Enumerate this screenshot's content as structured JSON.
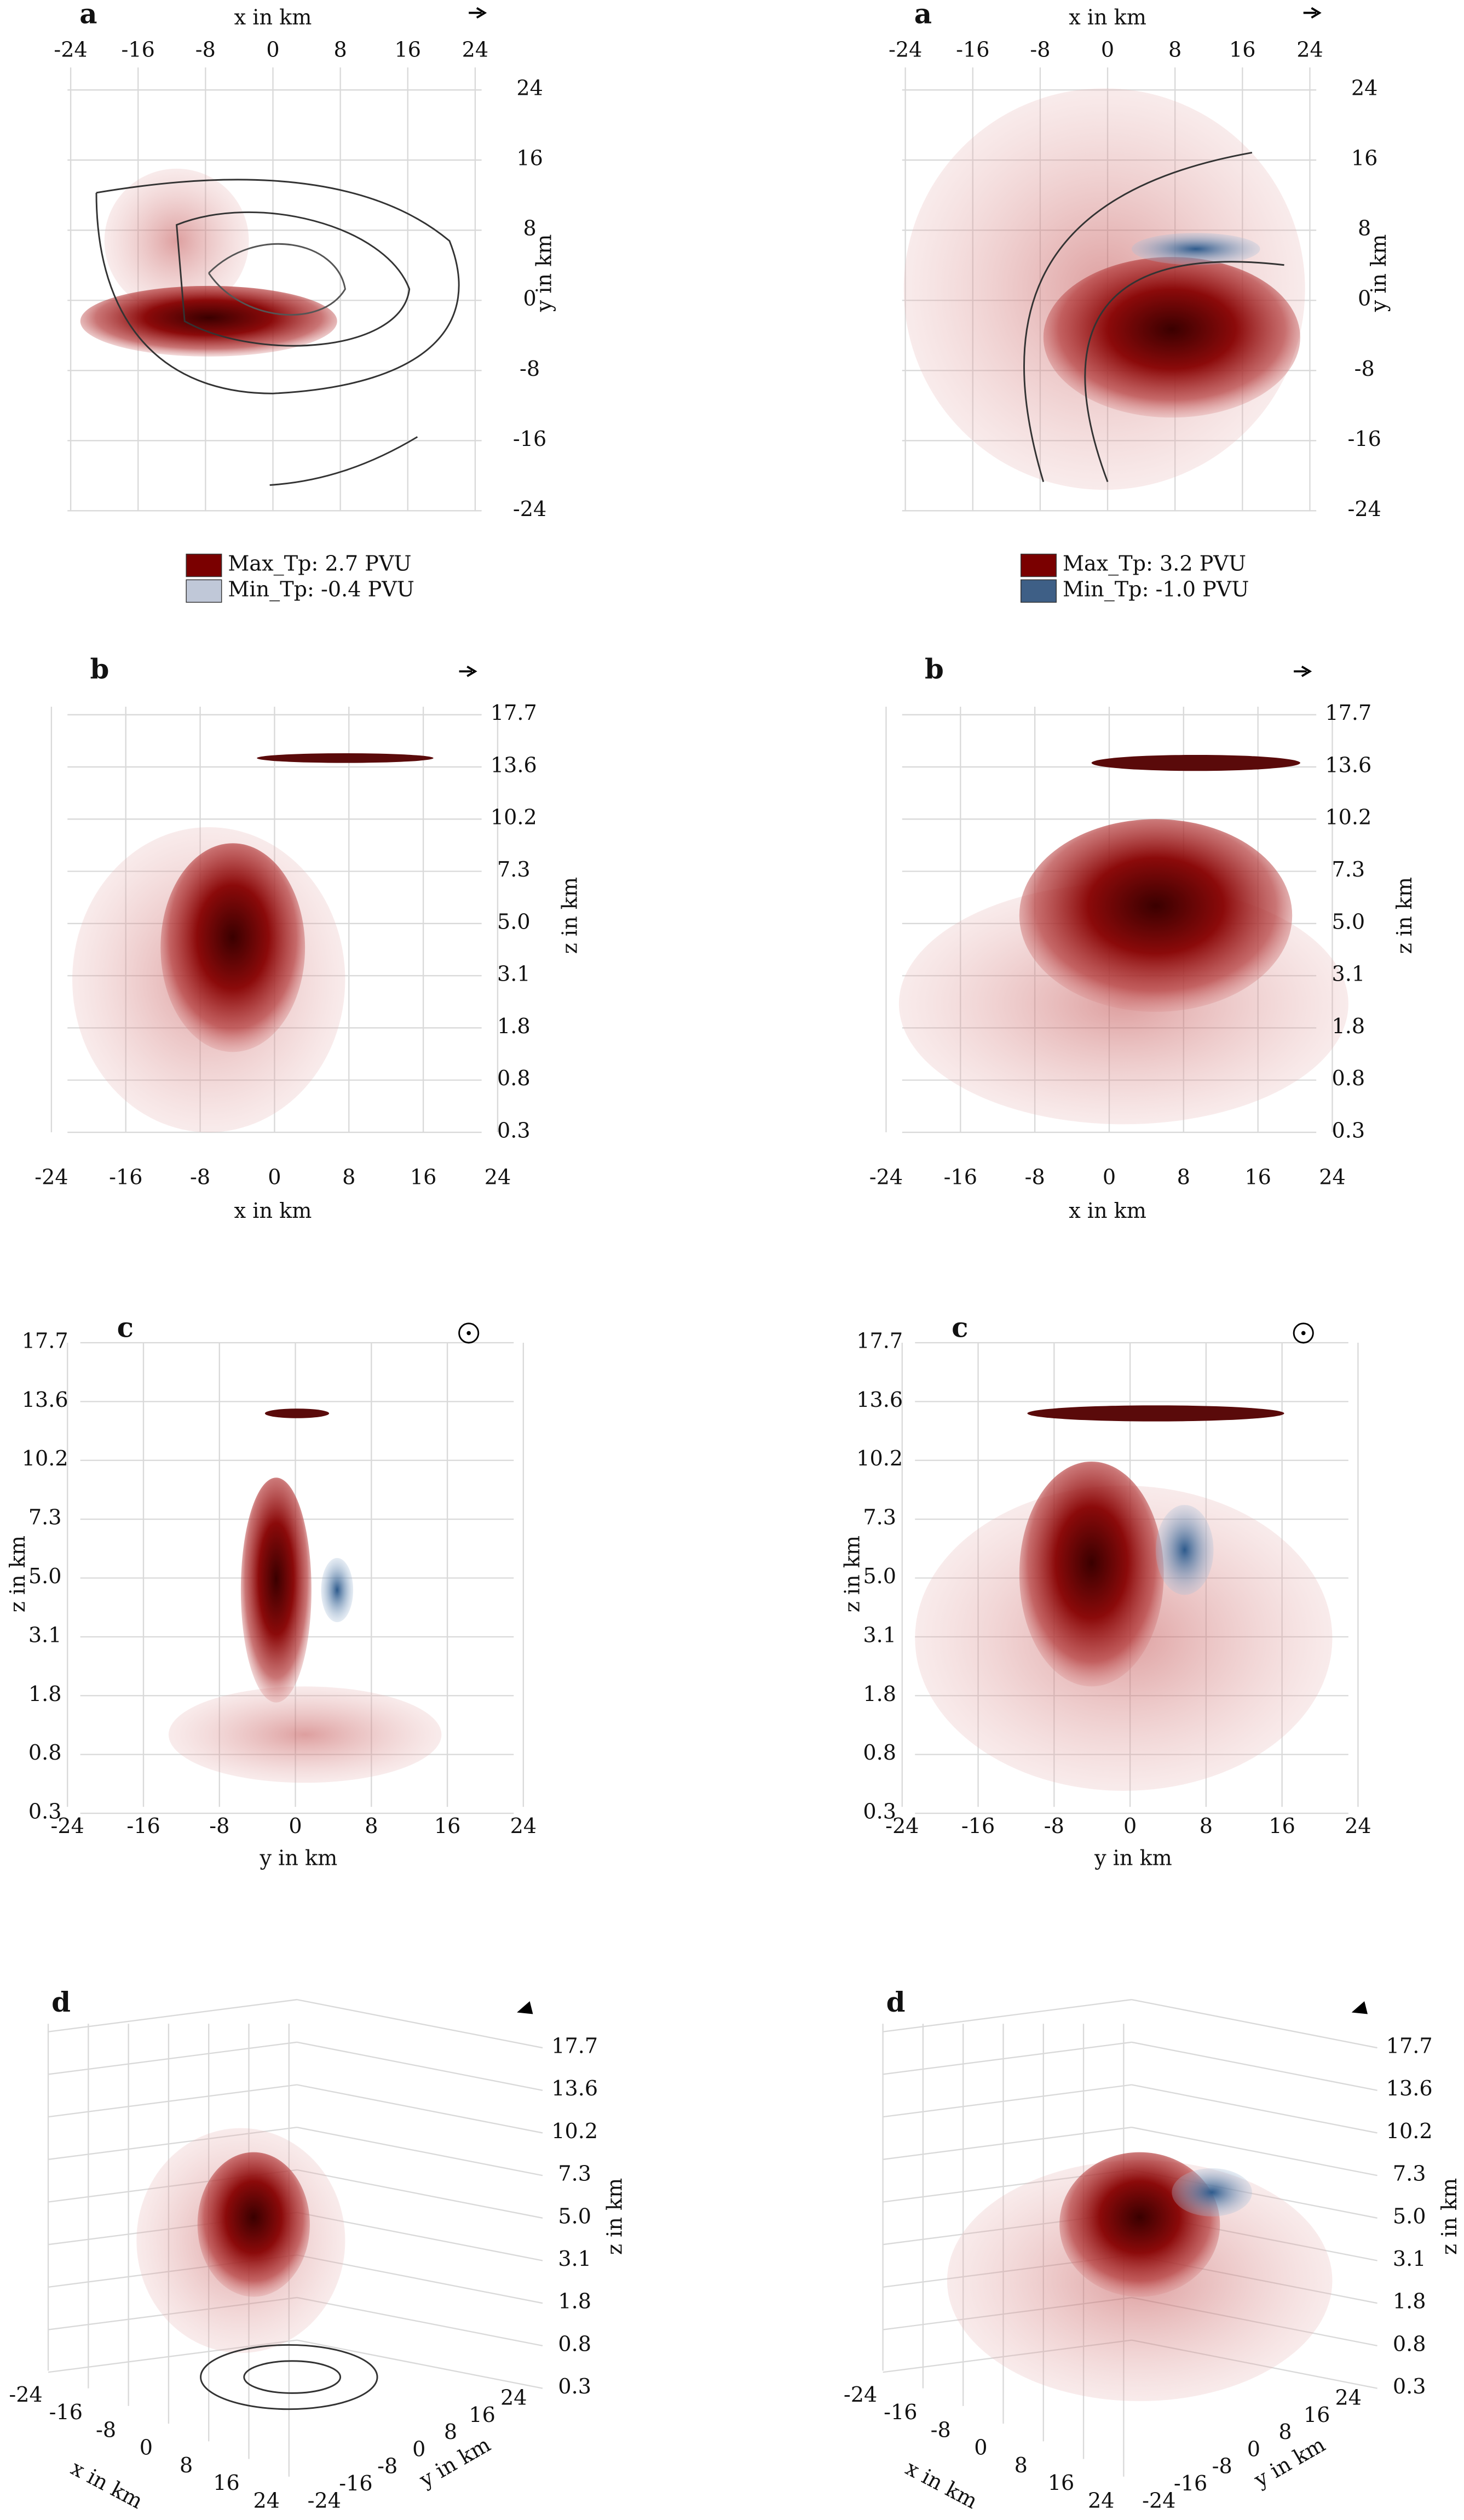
{
  "panels": [
    {
      "label": "a",
      "x_title": "x in km",
      "y_title": "y in km",
      "x_ticks": [
        "-24",
        "-16",
        "-8",
        "0",
        "8",
        "16",
        "24"
      ],
      "y_ticks": [
        "24",
        "16",
        "8",
        "0",
        "-8",
        "-16",
        "-24"
      ],
      "legend": [
        "Max_Tp: 2.7 PVU",
        "Min_Tp: -0.4 PVU"
      ]
    },
    {
      "label": "b",
      "x_title": "x in km",
      "z_title": "z in km",
      "x_ticks": [
        "-24",
        "-16",
        "-8",
        "0",
        "8",
        "16",
        "24"
      ],
      "z_ticks": [
        "17.7",
        "13.6",
        "10.2",
        "7.3",
        "5.0",
        "3.1",
        "1.8",
        "0.8",
        "0.3"
      ]
    },
    {
      "label": "c",
      "y_title": "y in km",
      "z_title": "z in km",
      "y_ticks": [
        "-24",
        "-16",
        "-8",
        "0",
        "8",
        "16",
        "24"
      ],
      "z_ticks": [
        "17.7",
        "13.6",
        "10.2",
        "7.3",
        "5.0",
        "3.1",
        "1.8",
        "0.8",
        "0.3"
      ]
    },
    {
      "label": "d",
      "x_title": "x in km",
      "y_title": "y in km",
      "z_title": "z in km",
      "x_ticks": [
        "-24",
        "-16",
        "-8",
        "0",
        "8",
        "16",
        "24"
      ],
      "y_ticks": [
        "-24",
        "-16",
        "-8",
        "0",
        "8",
        "16",
        "24"
      ],
      "z_ticks": [
        "17.7",
        "13.6",
        "10.2",
        "7.3",
        "5.0",
        "3.1",
        "1.8",
        "0.8",
        "0.3"
      ]
    },
    {
      "label": "a",
      "x_title": "x in km",
      "y_title": "y in km",
      "x_ticks": [
        "-24",
        "-16",
        "-8",
        "0",
        "8",
        "16",
        "24"
      ],
      "y_ticks": [
        "24",
        "16",
        "8",
        "0",
        "-8",
        "-16",
        "-24"
      ],
      "legend": [
        "Max_Tp: 3.2 PVU",
        "Min_Tp: -1.0 PVU"
      ]
    },
    {
      "label": "b",
      "x_title": "x in km",
      "z_title": "z in km",
      "x_ticks": [
        "-24",
        "-16",
        "-8",
        "0",
        "8",
        "16",
        "24"
      ],
      "z_ticks": [
        "17.7",
        "13.6",
        "10.2",
        "7.3",
        "5.0",
        "3.1",
        "1.8",
        "0.8",
        "0.3"
      ]
    },
    {
      "label": "c",
      "y_title": "y in km",
      "z_title": "z in km",
      "y_ticks": [
        "-24",
        "-16",
        "-8",
        "0",
        "8",
        "16",
        "24"
      ],
      "z_ticks": [
        "17.7",
        "13.6",
        "10.2",
        "7.3",
        "5.0",
        "3.1",
        "1.8",
        "0.8",
        "0.3"
      ]
    },
    {
      "label": "d",
      "x_title": "x in km",
      "y_title": "y in km",
      "z_title": "z in km",
      "x_ticks": [
        "-24",
        "-16",
        "-8",
        "0",
        "8",
        "16",
        "24"
      ],
      "y_ticks": [
        "-24",
        "-16",
        "-8",
        "0",
        "8",
        "16",
        "24"
      ],
      "z_ticks": [
        "17.7",
        "13.6",
        "10.2",
        "7.3",
        "5.0",
        "3.1",
        "1.8",
        "0.8",
        "0.3"
      ]
    }
  ]
}
